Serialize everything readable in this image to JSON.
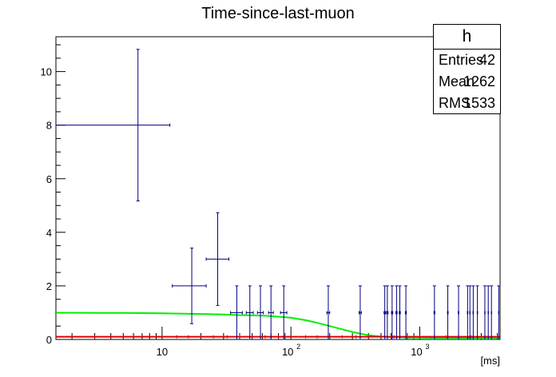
{
  "chart_data": {
    "type": "scatter",
    "title": "Time-since-last-muon",
    "xlabel": "[ms]",
    "ylabel": "",
    "xscale": "log",
    "xlim": [
      1.5,
      4200
    ],
    "ylim": [
      0,
      11.3
    ],
    "y_ticks": [
      "0",
      "2",
      "4",
      "6",
      "8",
      "10"
    ],
    "x_ticks": [
      {
        "value": 10,
        "base": "10",
        "exp": ""
      },
      {
        "value": 100,
        "base": "10",
        "exp": "2"
      },
      {
        "value": 1000,
        "base": "10",
        "exp": "3"
      }
    ],
    "grid": false,
    "series": [
      {
        "kind": "errorbar",
        "color": "#000080",
        "points": [
          {
            "x": 6.5,
            "y": 8,
            "xlo": 1.5,
            "xhi": 11.5,
            "yerr": 2.83
          },
          {
            "x": 17,
            "y": 2,
            "xlo": 12,
            "xhi": 22,
            "yerr": 1.41
          },
          {
            "x": 27,
            "y": 3,
            "xlo": 22,
            "xhi": 33,
            "yerr": 1.73
          },
          {
            "x": 38,
            "y": 1,
            "xlo": 34,
            "xhi": 42,
            "yerr": 1
          },
          {
            "x": 48,
            "y": 1,
            "xlo": 45,
            "xhi": 51,
            "yerr": 1
          },
          {
            "x": 58,
            "y": 1,
            "xlo": 55,
            "xhi": 61,
            "yerr": 1
          },
          {
            "x": 70,
            "y": 1,
            "xlo": 67,
            "xhi": 73,
            "yerr": 1
          },
          {
            "x": 88,
            "y": 1,
            "xlo": 83,
            "xhi": 93,
            "yerr": 1
          },
          {
            "x": 195,
            "y": 1,
            "xlo": 190,
            "xhi": 200,
            "yerr": 1
          },
          {
            "x": 345,
            "y": 1,
            "xlo": 338,
            "xhi": 352,
            "yerr": 1
          },
          {
            "x": 535,
            "y": 1,
            "xlo": 528,
            "xhi": 542,
            "yerr": 1
          },
          {
            "x": 560,
            "y": 1,
            "xlo": 553,
            "xhi": 567,
            "yerr": 1
          },
          {
            "x": 610,
            "y": 1,
            "xlo": 603,
            "xhi": 617,
            "yerr": 1
          },
          {
            "x": 660,
            "y": 1,
            "xlo": 653,
            "xhi": 667,
            "yerr": 1
          },
          {
            "x": 700,
            "y": 1,
            "xlo": 693,
            "xhi": 707,
            "yerr": 1
          },
          {
            "x": 780,
            "y": 1,
            "xlo": 773,
            "xhi": 787,
            "yerr": 1
          },
          {
            "x": 1300,
            "y": 1,
            "xlo": 1290,
            "xhi": 1310,
            "yerr": 1
          },
          {
            "x": 1650,
            "y": 1,
            "xlo": 1640,
            "xhi": 1660,
            "yerr": 1
          },
          {
            "x": 2000,
            "y": 1,
            "xlo": 1990,
            "xhi": 2010,
            "yerr": 1
          },
          {
            "x": 2350,
            "y": 1,
            "xlo": 2340,
            "xhi": 2360,
            "yerr": 1
          },
          {
            "x": 2450,
            "y": 1,
            "xlo": 2440,
            "xhi": 2460,
            "yerr": 1
          },
          {
            "x": 2600,
            "y": 1,
            "xlo": 2590,
            "xhi": 2610,
            "yerr": 1
          },
          {
            "x": 2800,
            "y": 1,
            "xlo": 2790,
            "xhi": 2810,
            "yerr": 1
          },
          {
            "x": 3200,
            "y": 1,
            "xlo": 3190,
            "xhi": 3210,
            "yerr": 1
          },
          {
            "x": 3400,
            "y": 1,
            "xlo": 3390,
            "xhi": 3410,
            "yerr": 1
          },
          {
            "x": 3600,
            "y": 1,
            "xlo": 3590,
            "xhi": 3610,
            "yerr": 1
          },
          {
            "x": 4100,
            "y": 1,
            "xlo": 4090,
            "xhi": 4110,
            "yerr": 1
          }
        ]
      },
      {
        "kind": "line",
        "color": "#00ee00",
        "x": [
          1.5,
          5,
          10,
          20,
          30,
          40,
          50,
          60,
          70,
          80,
          100,
          130,
          160,
          200,
          250,
          300,
          350,
          400,
          450,
          500,
          600,
          700,
          800,
          1000,
          1200,
          1400,
          2000,
          3000,
          4200
        ],
        "y": [
          1.0,
          0.99,
          0.975,
          0.95,
          0.93,
          0.91,
          0.9,
          0.89,
          0.87,
          0.85,
          0.81,
          0.72,
          0.62,
          0.5,
          0.38,
          0.28,
          0.21,
          0.16,
          0.13,
          0.11,
          0.09,
          0.08,
          0.07,
          0.065,
          0.06,
          0.06,
          0.06,
          0.06,
          0.06
        ]
      },
      {
        "kind": "line",
        "color": "#dd0000",
        "x": [
          1.5,
          4200
        ],
        "y": [
          0.1,
          0.1
        ],
        "markers": [
          2,
          3,
          4,
          5,
          6,
          8,
          10,
          13,
          16,
          20,
          25,
          32,
          40,
          50,
          63,
          80,
          100,
          130,
          160,
          200,
          250,
          320,
          400,
          500,
          630,
          800,
          1000,
          1300,
          1600,
          2000,
          2500,
          3200,
          4000
        ]
      }
    ]
  },
  "stats": {
    "name": "h",
    "entries_label": "Entries",
    "entries_value": "42",
    "mean_label": "Mean",
    "mean_value": "1262",
    "rms_label": "RMS",
    "rms_value": "1533"
  }
}
